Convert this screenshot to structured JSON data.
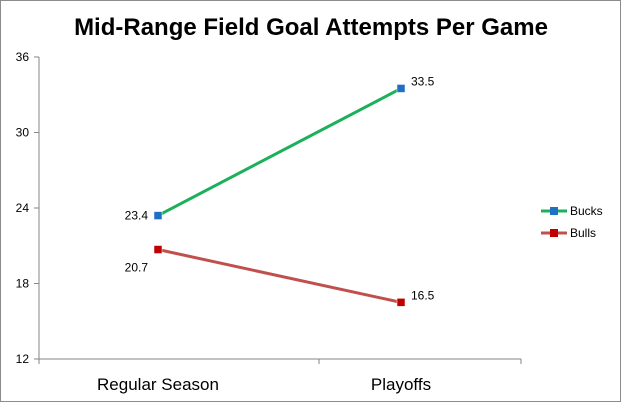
{
  "chart_data": {
    "type": "line",
    "title": "Mid-Range Field Goal Attempts Per Game",
    "xlabel": "",
    "ylabel": "",
    "categories": [
      "Regular Season",
      "Playoffs"
    ],
    "ylim": [
      12,
      36
    ],
    "yticks": [
      12,
      18,
      24,
      30,
      36
    ],
    "grid": false,
    "legend_position": "right",
    "series": [
      {
        "name": "Bucks",
        "values": [
          23.4,
          33.5
        ],
        "labels": [
          "23.4",
          "33.5"
        ],
        "color": "#1bb05a",
        "marker_color": "#1f6fc2"
      },
      {
        "name": "Bulls",
        "values": [
          20.7,
          16.5
        ],
        "labels": [
          "20.7",
          "16.5"
        ],
        "color": "#c0504d",
        "marker_color": "#c00000"
      }
    ]
  }
}
